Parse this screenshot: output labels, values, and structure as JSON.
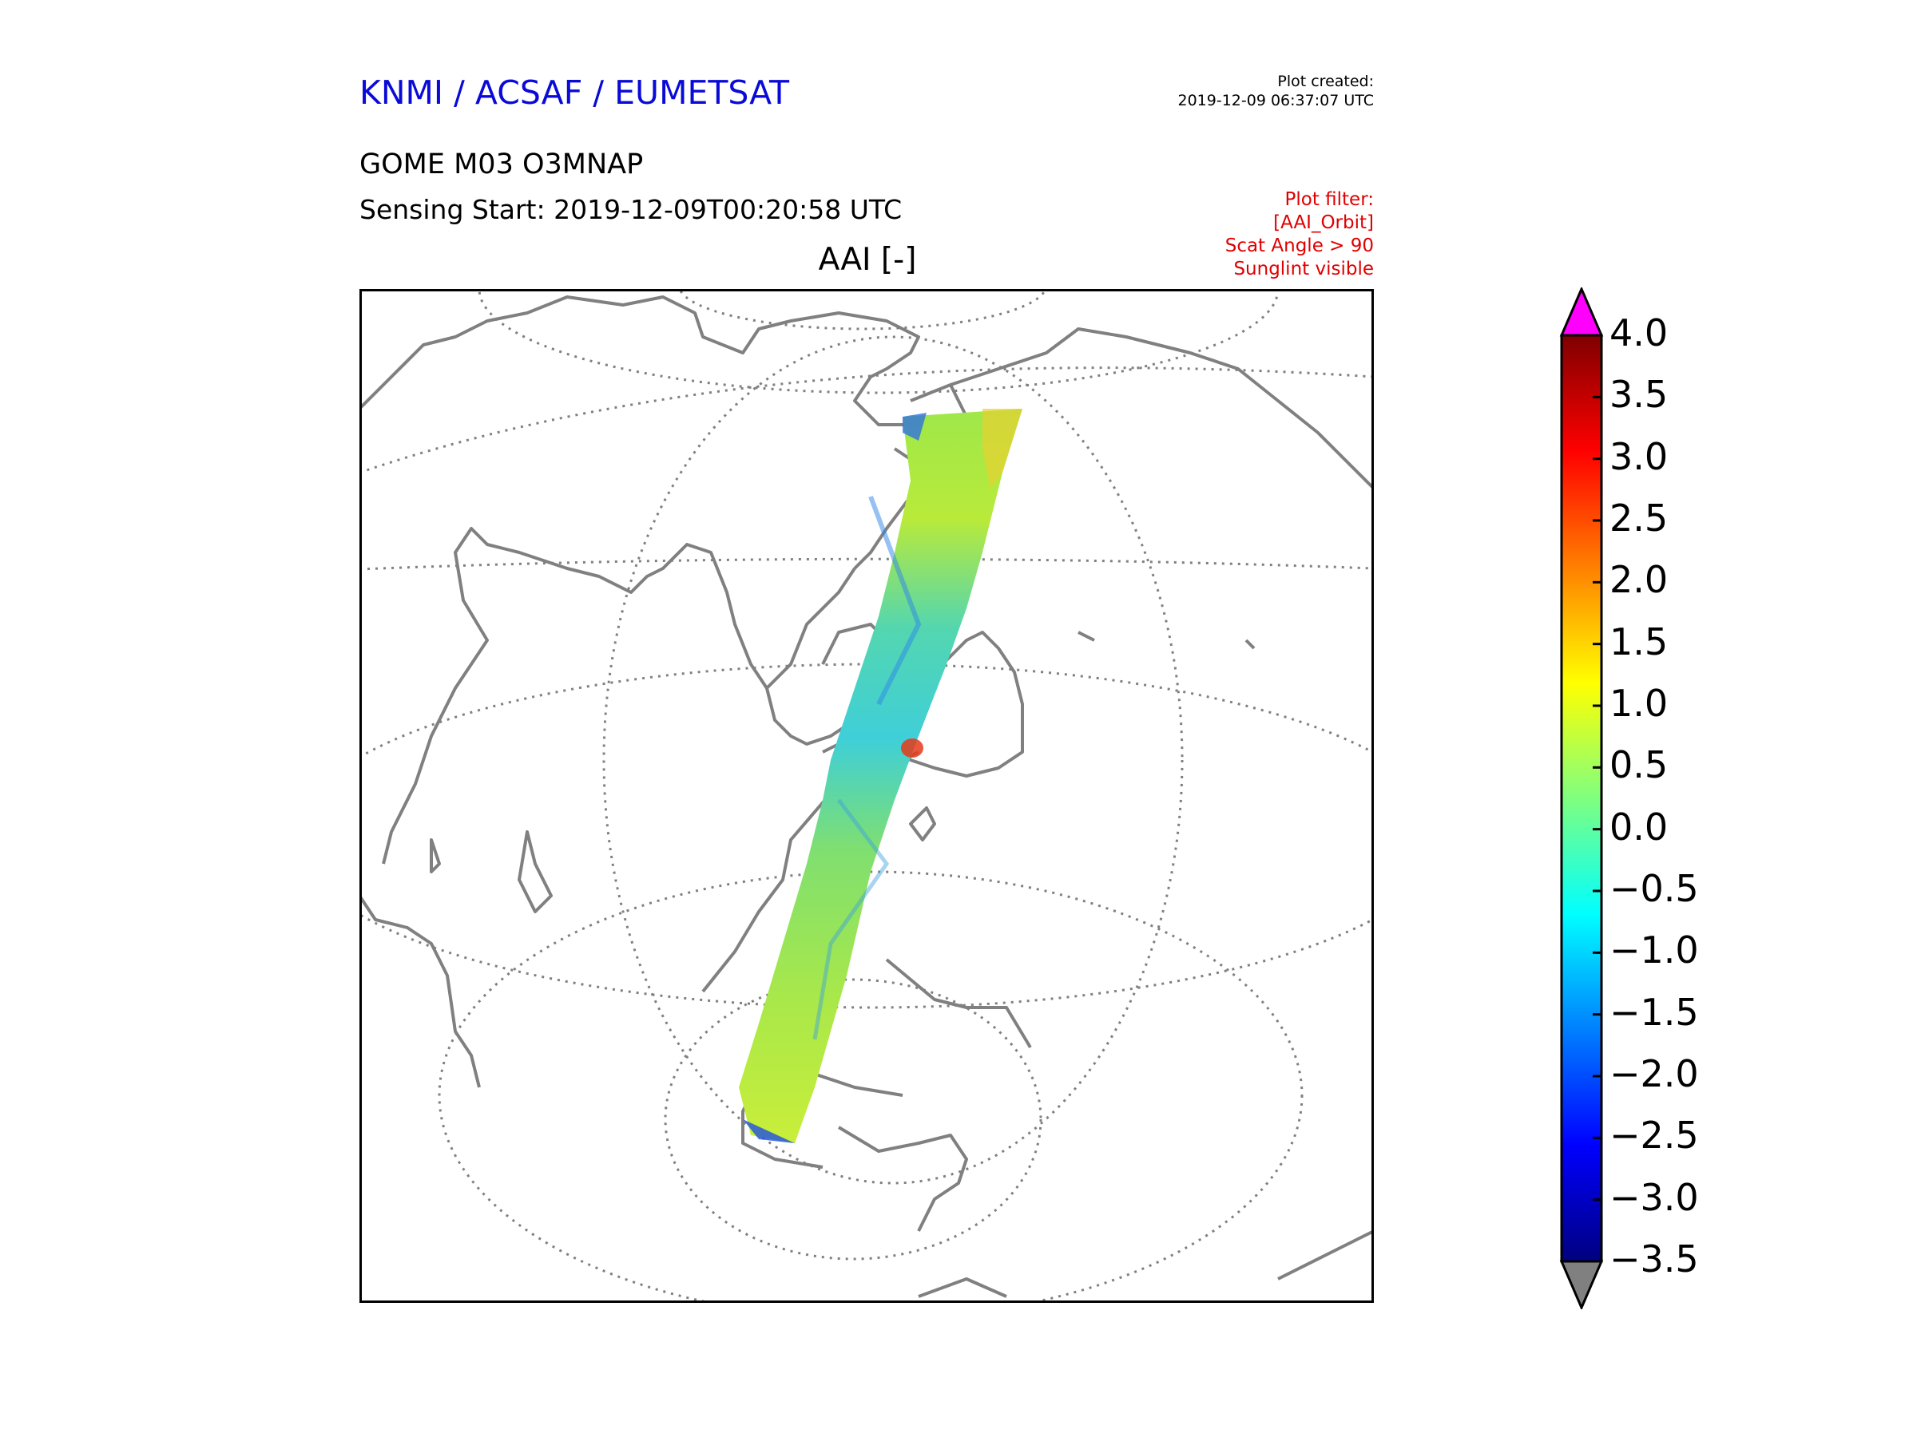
{
  "header": {
    "organization": "KNMI / ACSAF / EUMETSAT",
    "created_label": "Plot created:",
    "created_time": "2019-12-09 06:37:07 UTC",
    "product": "GOME M03 O3MNAP",
    "sensing_start": "Sensing Start: 2019-12-09T00:20:58 UTC",
    "filter_label": "Plot filter:",
    "filter_lines": [
      "[AAI_Orbit]",
      "Scat Angle > 90",
      "Sunglint visible"
    ]
  },
  "map": {
    "title": "AAI [-]",
    "projection": "orthographic, centred on the Indian Ocean / Australia",
    "swath_region": "Kamchatka – Japan – Indonesia – Western Australia – Antarctica",
    "colors": {
      "frame": "#000000",
      "graticule": "#808080",
      "coast": "#808080"
    }
  },
  "colorbar": {
    "variable": "AAI [-]",
    "min": -3.5,
    "max": 4.0,
    "ticks": [
      "4.0",
      "3.5",
      "3.0",
      "2.5",
      "2.0",
      "1.5",
      "1.0",
      "0.5",
      "0.0",
      "−0.5",
      "−1.0",
      "−1.5",
      "−2.0",
      "−2.5",
      "−3.0",
      "−3.5"
    ],
    "over_color": "#ff00ff",
    "under_color": "#808080",
    "cmap_stops": [
      "#00007f",
      "#0000ff",
      "#007fff",
      "#00ffff",
      "#7fff7f",
      "#ffff00",
      "#ff7f00",
      "#ff0000",
      "#7f0000"
    ]
  }
}
